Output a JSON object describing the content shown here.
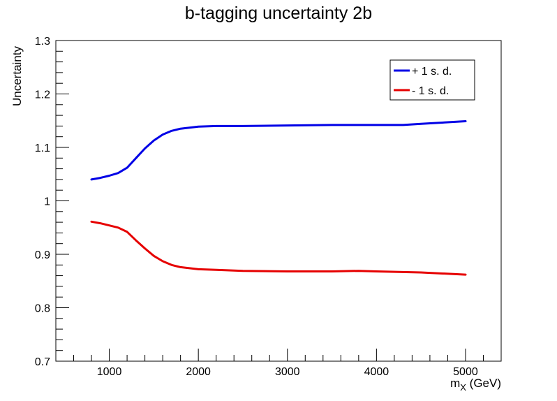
{
  "chart_data": {
    "type": "line",
    "title": "b-tagging uncertainty 2b",
    "xlabel": "m",
    "xlabel_sub": "X",
    "xlabel_unit": " (GeV)",
    "ylabel": "Uncertainty",
    "xlim": [
      400,
      5400
    ],
    "ylim": [
      0.7,
      1.3
    ],
    "xticks": [
      1000,
      2000,
      3000,
      4000,
      5000
    ],
    "xtick_labels": [
      "1000",
      "2000",
      "3000",
      "4000",
      "5000"
    ],
    "yticks": [
      0.7,
      0.8,
      0.9,
      1.0,
      1.1,
      1.2,
      1.3
    ],
    "ytick_labels": [
      "0.7",
      "0.8",
      "0.9",
      "1",
      "1.1",
      "1.2",
      "1.3"
    ],
    "grid": false,
    "legend_position": "top-right",
    "series": [
      {
        "name": "+ 1 s. d.",
        "color": "#0000e6",
        "x": [
          800,
          900,
          1000,
          1100,
          1200,
          1300,
          1400,
          1500,
          1600,
          1700,
          1800,
          1900,
          2000,
          2200,
          2500,
          3000,
          3500,
          4000,
          4300,
          4500,
          4800,
          5000
        ],
        "y": [
          1.04,
          1.043,
          1.047,
          1.052,
          1.062,
          1.08,
          1.098,
          1.113,
          1.124,
          1.131,
          1.135,
          1.137,
          1.139,
          1.14,
          1.14,
          1.141,
          1.142,
          1.142,
          1.142,
          1.144,
          1.147,
          1.149
        ]
      },
      {
        "name": "- 1 s. d.",
        "color": "#e60000",
        "x": [
          800,
          900,
          1000,
          1100,
          1200,
          1300,
          1400,
          1500,
          1600,
          1700,
          1800,
          1900,
          2000,
          2200,
          2500,
          3000,
          3500,
          3800,
          4000,
          4500,
          5000
        ],
        "y": [
          0.961,
          0.958,
          0.954,
          0.95,
          0.942,
          0.926,
          0.911,
          0.897,
          0.887,
          0.88,
          0.876,
          0.874,
          0.872,
          0.871,
          0.869,
          0.868,
          0.868,
          0.869,
          0.868,
          0.866,
          0.862
        ]
      }
    ]
  }
}
